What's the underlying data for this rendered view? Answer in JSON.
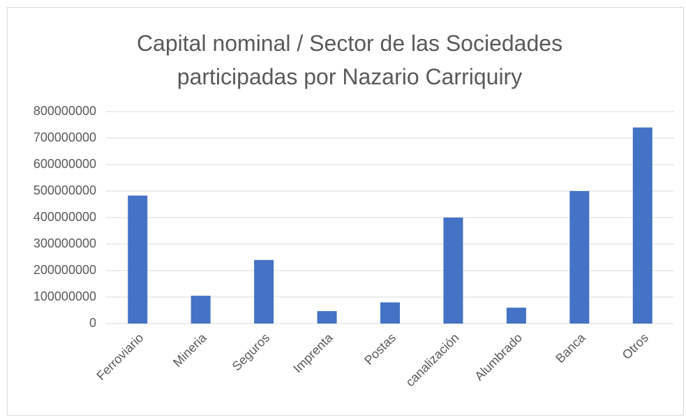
{
  "chart_data": {
    "type": "bar",
    "title": "Capital nominal / Sector de las Sociedades participadas por Nazario Carriquiry",
    "categories": [
      "Ferroviario",
      "Mineria",
      "Seguros",
      "Imprenta",
      "Postas",
      "canalización",
      "Alumbrado",
      "Banca",
      "Otros"
    ],
    "values": [
      483000000,
      105000000,
      240000000,
      47000000,
      80000000,
      400000000,
      60000000,
      500000000,
      740000000
    ],
    "color": "#4472c4",
    "ylim": [
      0,
      800000000
    ],
    "yticks": [
      0,
      100000000,
      200000000,
      300000000,
      400000000,
      500000000,
      600000000,
      700000000,
      800000000
    ],
    "grid": true
  }
}
